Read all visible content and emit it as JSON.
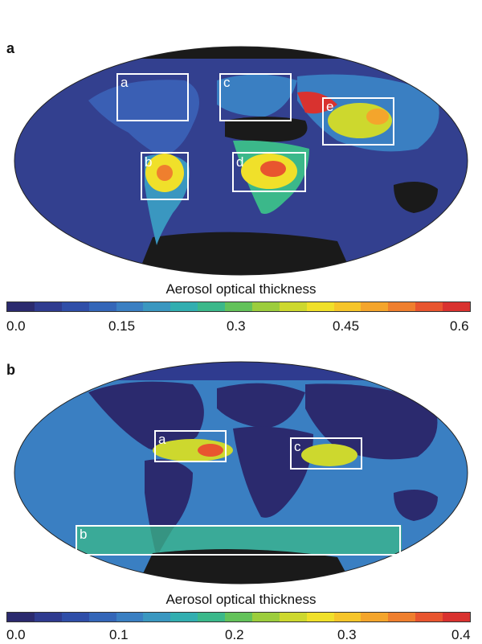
{
  "panel_a": {
    "letter": "a",
    "region_labels": [
      "a",
      "b",
      "c",
      "d",
      "e"
    ],
    "colorbar_title": "Aerosol optical thickness",
    "ticks": [
      "0.0",
      "0.15",
      "0.3",
      "0.45",
      "0.6"
    ]
  },
  "panel_b": {
    "letter": "b",
    "region_labels": [
      "a",
      "b",
      "c"
    ],
    "colorbar_title": "Aerosol optical thickness",
    "ticks": [
      "0.0",
      "0.1",
      "0.2",
      "0.3",
      "0.4"
    ]
  },
  "colormap": [
    "#2b2a6e",
    "#2f3b8f",
    "#2f4ea8",
    "#3466b8",
    "#3a7fc2",
    "#3a97c0",
    "#32aeb0",
    "#3bb88a",
    "#63c25a",
    "#9ccd3c",
    "#cdd82e",
    "#f0e02a",
    "#f6c52a",
    "#f4a52c",
    "#ef7f2e",
    "#e8552f",
    "#d9322f"
  ],
  "ocean_color": "#33408f",
  "no_data_color": "#1a1a1a",
  "box_color": "#ffffff"
}
